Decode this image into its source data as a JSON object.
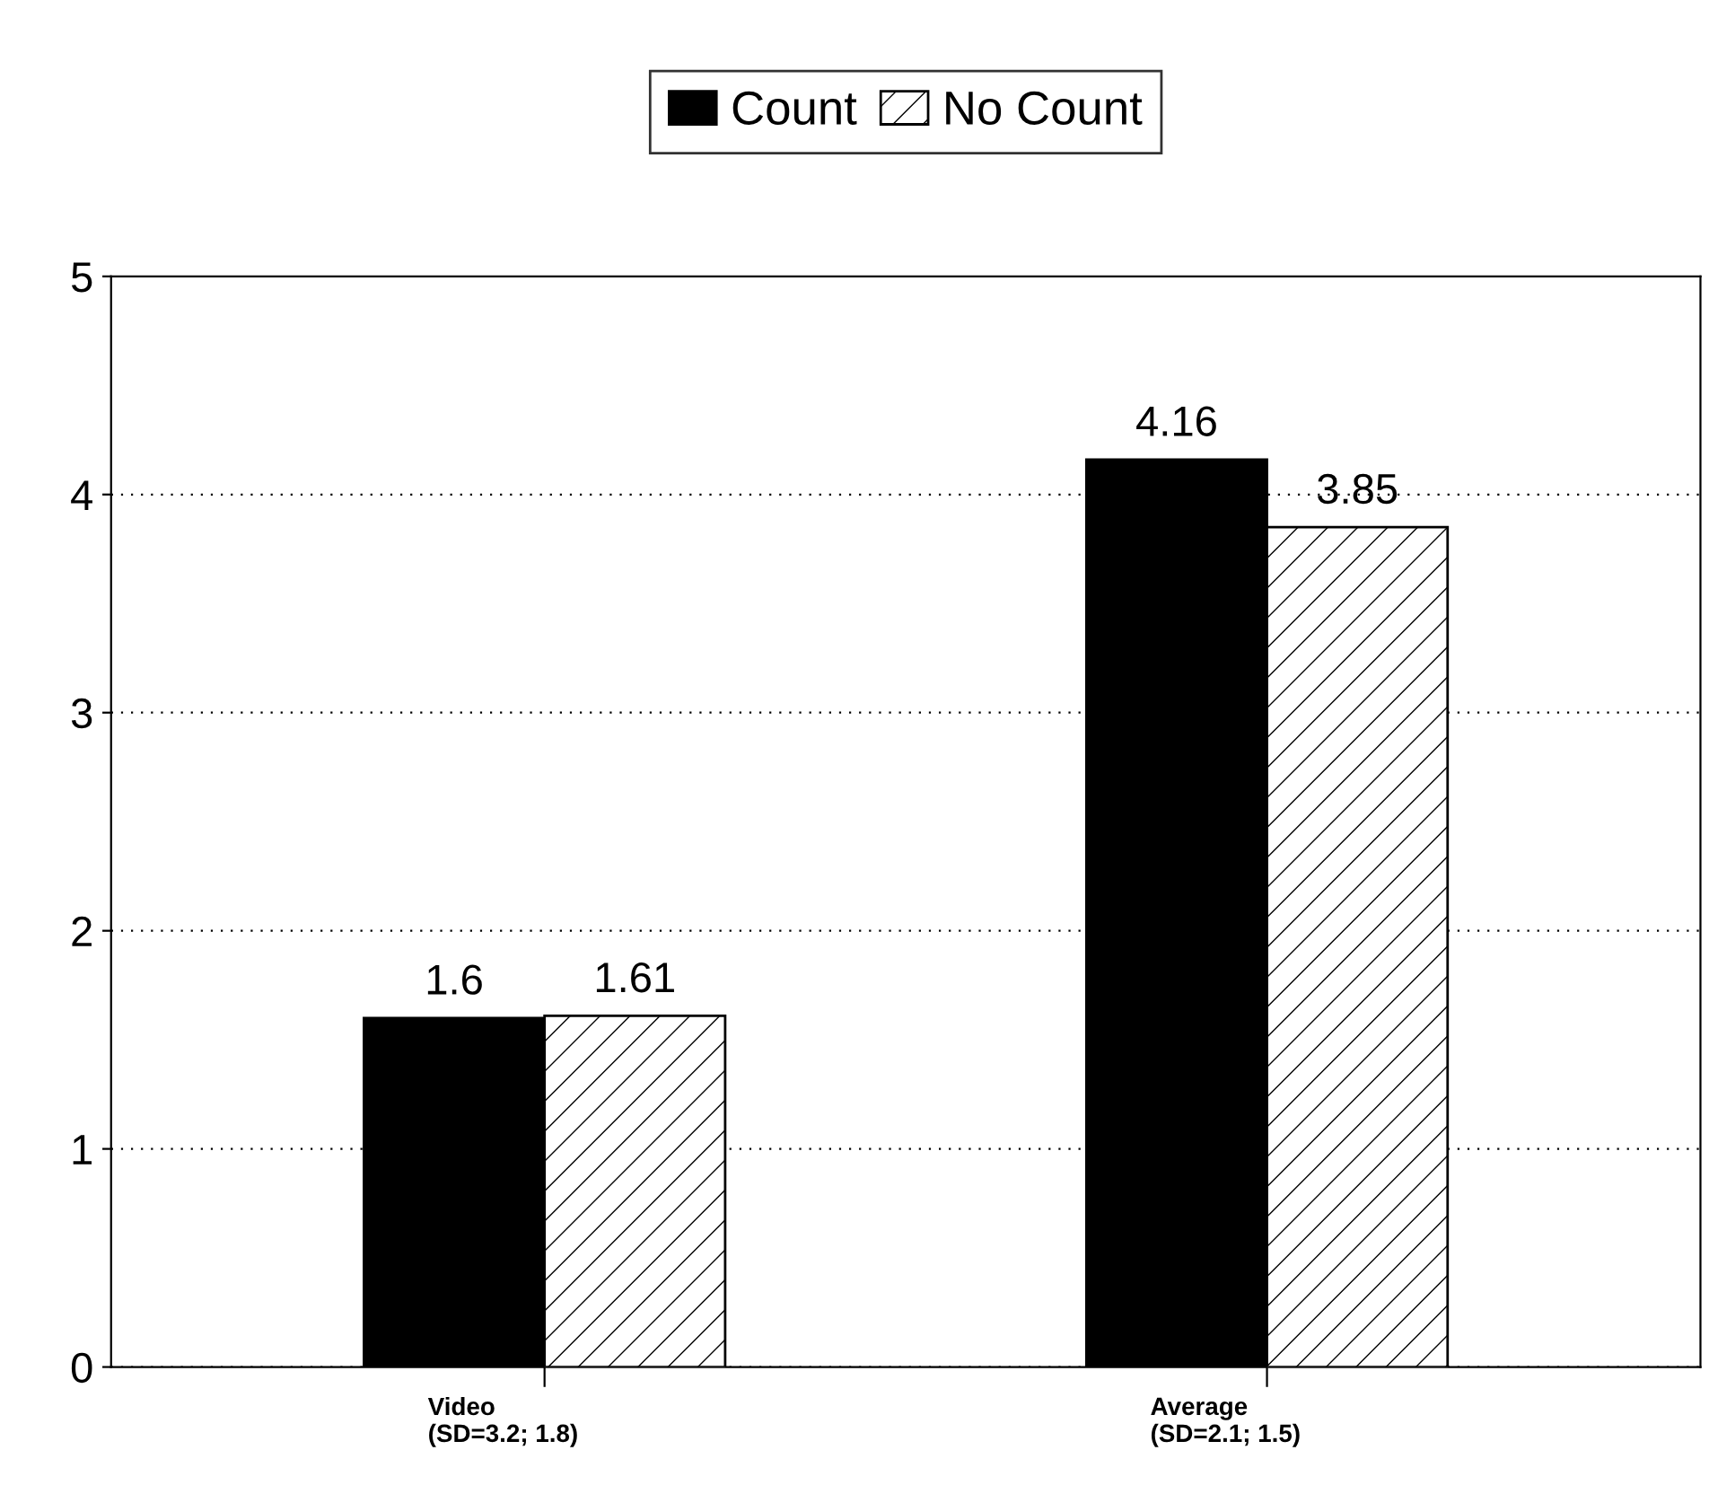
{
  "chart_data": {
    "type": "bar",
    "categories": [
      "Video\n(SD=3.2; 1.8)",
      "Average\n(SD=2.1; 1.5)"
    ],
    "series": [
      {
        "name": "Count",
        "color": "#000000",
        "values": [
          1.6,
          4.16
        ]
      },
      {
        "name": "No Count",
        "color": "#ffffff",
        "values": [
          1.61,
          3.85
        ]
      }
    ],
    "ylim": [
      0,
      5
    ],
    "yticks": [
      0,
      1,
      2,
      3,
      4,
      5
    ],
    "grid": "y",
    "legend": "top",
    "data_labels": true
  }
}
